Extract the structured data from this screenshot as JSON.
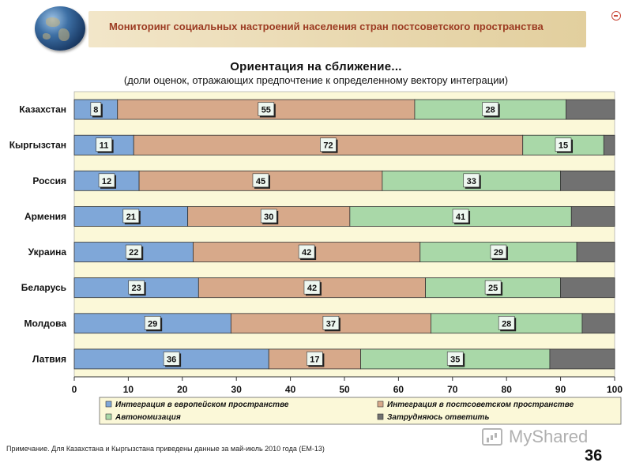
{
  "header": {
    "title": "Мониторинг социальных настроений населения стран постсоветского пространства"
  },
  "chart_data": {
    "type": "bar",
    "orientation": "horizontal",
    "stacked": true,
    "title": "Ориентация на сближение...",
    "subtitle": "(доли оценок, отражающих предпочтение к определенному вектору интеграции)",
    "categories": [
      "Казахстан",
      "Кыргызстан",
      "Россия",
      "Армения",
      "Украина",
      "Беларусь",
      "Молдова",
      "Латвия"
    ],
    "series": [
      {
        "name": "Интеграция в европейском пространстве",
        "color": "#7fa7d8",
        "values": [
          8,
          11,
          12,
          21,
          22,
          23,
          29,
          36
        ]
      },
      {
        "name": "Интеграция в постсоветском пространстве",
        "color": "#d7a98a",
        "values": [
          55,
          72,
          45,
          30,
          42,
          42,
          37,
          17
        ]
      },
      {
        "name": "Автономизация",
        "color": "#a9d8a8",
        "values": [
          28,
          15,
          33,
          41,
          29,
          25,
          28,
          35
        ]
      },
      {
        "name": "Затрудняюсь ответить",
        "color": "#717171",
        "values": [
          9,
          2,
          10,
          8,
          7,
          10,
          6,
          12
        ]
      }
    ],
    "labeled_series": [
      0,
      1,
      2
    ],
    "xlim": [
      0,
      100
    ],
    "xticks": [
      "0",
      "10",
      "20",
      "30",
      "40",
      "50",
      "60",
      "70",
      "80",
      "90",
      "100"
    ],
    "grid": false,
    "legend_position": "bottom"
  },
  "footnote": "Примечание. Для Казахстана и Кыргызстана приведены данные за май-июль 2010 года (ЕМ-13)",
  "watermark": "MyShared",
  "page_number": "36",
  "colors": {
    "plot_background": "#fbf8d8",
    "title_color": "#9c3b22"
  }
}
